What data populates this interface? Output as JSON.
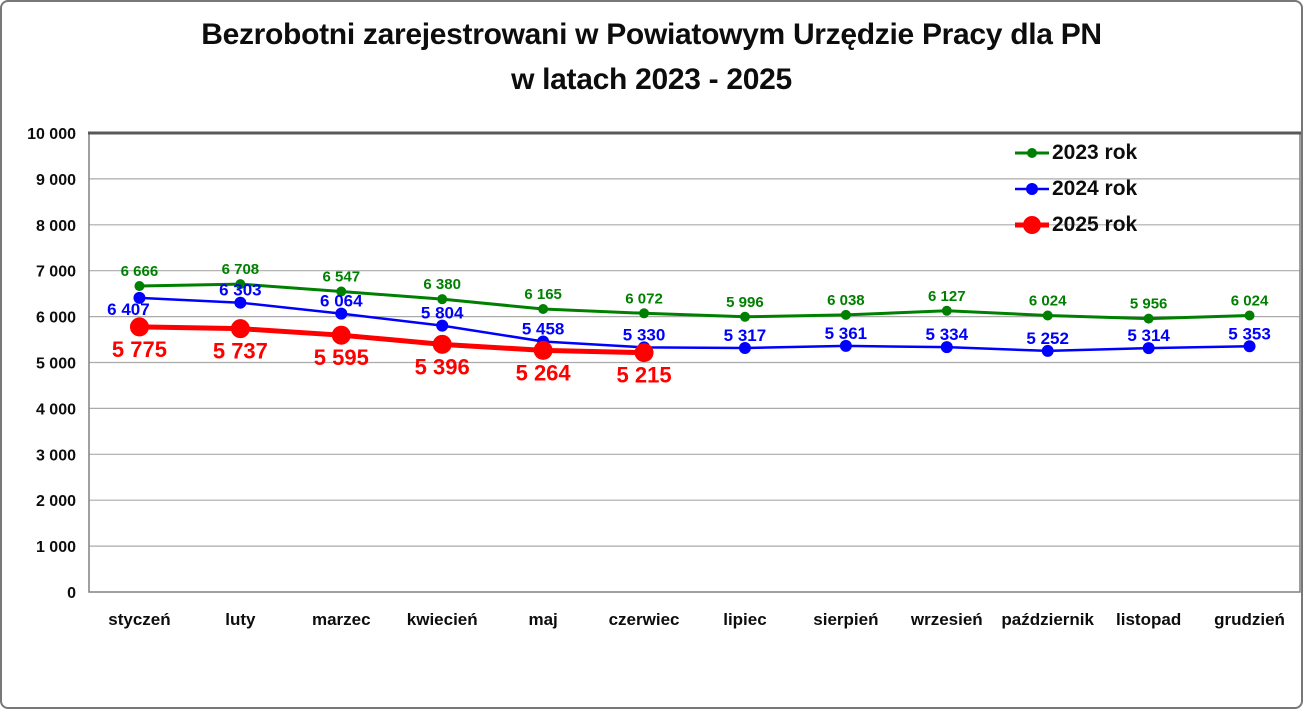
{
  "header": {
    "title_line1": "Bezrobotni zarejestrowani w Powiatowym Urzędzie Pracy dla PN",
    "title_line2": "w latach 2023 - 2025"
  },
  "legend": {
    "items": [
      {
        "label": "2023 rok",
        "color": "#008000"
      },
      {
        "label": "2024 rok",
        "color": "#0000FF"
      },
      {
        "label": "2025 rok",
        "color": "#FF0000"
      }
    ]
  },
  "chart_data": {
    "type": "line",
    "title": "Bezrobotni zarejestrowani w Powiatowym Urzędzie Pracy dla PN w latach 2023 - 2025",
    "xlabel": "",
    "ylabel": "",
    "categories": [
      "styczeń",
      "luty",
      "marzec",
      "kwiecień",
      "maj",
      "czerwiec",
      "lipiec",
      "sierpień",
      "wrzesień",
      "październik",
      "listopad",
      "grudzień"
    ],
    "series": [
      {
        "name": "2023 rok",
        "color": "#008000",
        "values": [
          6666,
          6708,
          6547,
          6380,
          6165,
          6072,
          5996,
          6038,
          6127,
          6024,
          5956,
          6024
        ],
        "marker_radius": 5,
        "line_width": 3,
        "label_font_size": 15,
        "label_position": "above"
      },
      {
        "name": "2024 rok",
        "color": "#0000FF",
        "values": [
          6407,
          6303,
          6064,
          5804,
          5458,
          5330,
          5317,
          5361,
          5334,
          5252,
          5314,
          5353
        ],
        "marker_radius": 6,
        "line_width": 2.5,
        "label_font_size": 17,
        "label_position": "above",
        "label_below_indices": [
          0
        ]
      },
      {
        "name": "2025 rok",
        "color": "#FF0000",
        "values": [
          5775,
          5737,
          5595,
          5396,
          5264,
          5215
        ],
        "marker_radius": 9.5,
        "line_width": 5,
        "label_font_size": 22,
        "label_position": "below"
      }
    ],
    "ylim": [
      0,
      10000
    ],
    "ytick_interval": 1000,
    "ytick_labels": [
      "0",
      "1 000",
      "2 000",
      "3 000",
      "4 000",
      "5 000",
      "6 000",
      "7 000",
      "8 000",
      "9 000",
      "10 000"
    ],
    "grid": "horizontal-only",
    "legend_position": "top-right",
    "data_labels": true,
    "number_format": "space-separated thousands"
  }
}
